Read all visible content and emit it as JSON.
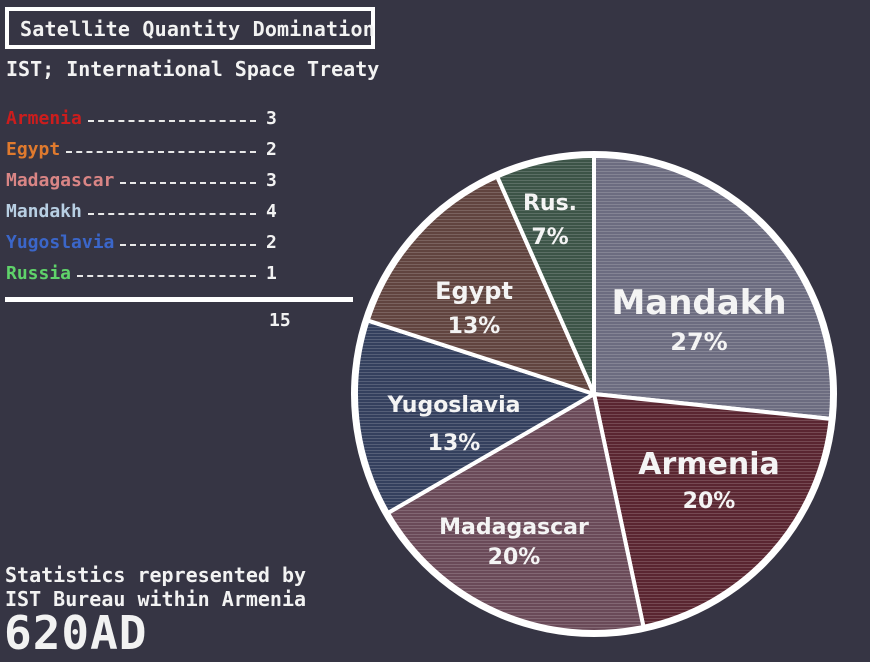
{
  "title": "Satellite Quantity Domination",
  "subtitle": "IST; International Space Treaty",
  "total": "15",
  "footer": {
    "line1": "Statistics represented by",
    "line2": "IST Bureau within Armenia",
    "year": "620AD"
  },
  "chart_data": {
    "type": "pie",
    "title": "Satellite Quantity Domination",
    "categories": [
      "Armenia",
      "Egypt",
      "Madagascar",
      "Mandakh",
      "Yugoslavia",
      "Russia"
    ],
    "values": [
      3,
      2,
      3,
      4,
      2,
      1
    ],
    "legend": [
      {
        "name": "Armenia",
        "value": "3",
        "color": "#cc1d1d"
      },
      {
        "name": "Egypt",
        "value": "2",
        "color": "#e07a2e"
      },
      {
        "name": "Madagascar",
        "value": "3",
        "color": "#d98585"
      },
      {
        "name": "Mandakh",
        "value": "4",
        "color": "#b8cfe3"
      },
      {
        "name": "Yugoslavia",
        "value": "2",
        "color": "#3b66c9"
      },
      {
        "name": "Russia",
        "value": "1",
        "color": "#5fd36a"
      }
    ],
    "slices": [
      {
        "name": "Mandakh",
        "label": "Mandakh",
        "percent": "27%",
        "value": 4,
        "fill": "#6c6c80"
      },
      {
        "name": "Armenia",
        "label": "Armenia",
        "percent": "20%",
        "value": 3,
        "fill": "#5a2631"
      },
      {
        "name": "Madagascar",
        "label": "Madagascar",
        "percent": "20%",
        "value": 3,
        "fill": "#6a4a58"
      },
      {
        "name": "Yugoslavia",
        "label": "Yugoslavia",
        "percent": "13%",
        "value": 2,
        "fill": "#34405e"
      },
      {
        "name": "Egypt",
        "label": "Egypt",
        "percent": "13%",
        "value": 2,
        "fill": "#61443f"
      },
      {
        "name": "Russia",
        "label": "Rus.",
        "percent": "7%",
        "value": 1,
        "fill": "#3c5447"
      }
    ]
  }
}
